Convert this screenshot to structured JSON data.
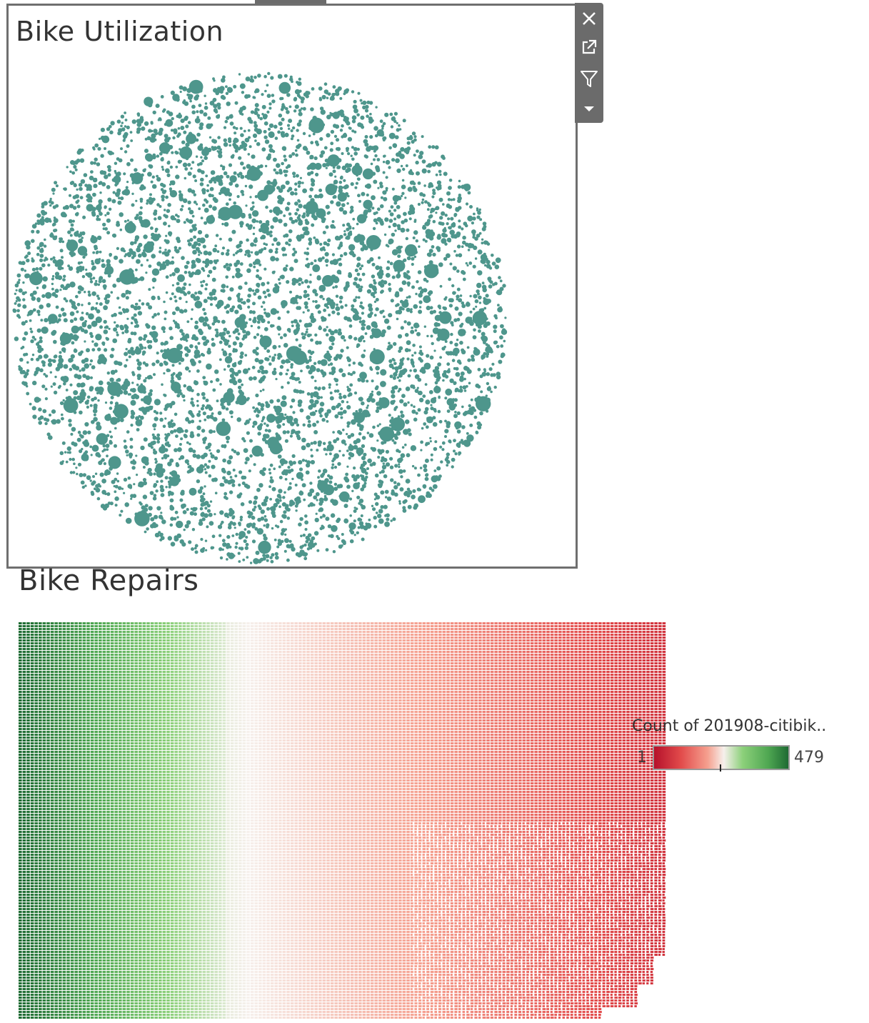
{
  "utilization": {
    "title": "Bike Utilization",
    "bubble_color": "#4e968c"
  },
  "toolbar": {
    "icons": [
      "close-icon",
      "open-external-icon",
      "filter-icon",
      "dropdown-icon"
    ]
  },
  "repairs": {
    "title": "Bike Repairs",
    "legend": {
      "title": "Count of 201908-citibik..",
      "min": "1",
      "max": "479",
      "colors": [
        "#b5112b",
        "#e24b4b",
        "#f5a08f",
        "#f6f0ec",
        "#8cd07a",
        "#4fa752",
        "#1e6b33"
      ]
    }
  }
}
